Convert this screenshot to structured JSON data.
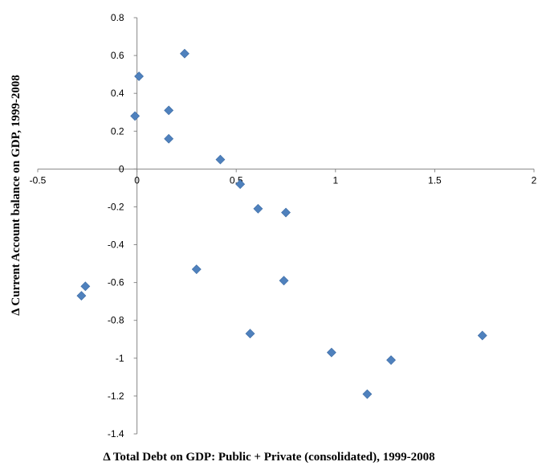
{
  "chart_data": {
    "type": "scatter",
    "title": "",
    "xlabel": "Δ Total Debt on GDP: Public + Private (consolidated), 1999-2008",
    "ylabel": "Δ Current Account balance on GDP, 1999-2008",
    "xlim": [
      -0.5,
      2
    ],
    "ylim": [
      -1.4,
      0.8
    ],
    "x_ticks": [
      "-0.5",
      "0",
      "0.5",
      "1",
      "1.5",
      "2"
    ],
    "y_ticks": [
      "0.8",
      "0.6",
      "0.4",
      "0.2",
      "0",
      "-0.2",
      "-0.4",
      "-0.6",
      "-0.8",
      "-1",
      "-1.2",
      "-1.4"
    ],
    "grid": false,
    "marker_color": "#4f81bd",
    "series": [
      {
        "points": [
          {
            "x": 0.01,
            "y": 0.49
          },
          {
            "x": 0.24,
            "y": 0.61
          },
          {
            "x": -0.01,
            "y": 0.28
          },
          {
            "x": 0.16,
            "y": 0.31
          },
          {
            "x": 0.16,
            "y": 0.16
          },
          {
            "x": 0.42,
            "y": 0.05
          },
          {
            "x": 0.52,
            "y": -0.08
          },
          {
            "x": 0.61,
            "y": -0.21
          },
          {
            "x": 0.75,
            "y": -0.23
          },
          {
            "x": 0.3,
            "y": -0.53
          },
          {
            "x": 0.74,
            "y": -0.59
          },
          {
            "x": -0.26,
            "y": -0.62
          },
          {
            "x": -0.28,
            "y": -0.67
          },
          {
            "x": 0.57,
            "y": -0.87
          },
          {
            "x": 0.98,
            "y": -0.97
          },
          {
            "x": 1.28,
            "y": -1.01
          },
          {
            "x": 1.16,
            "y": -1.19
          },
          {
            "x": 1.74,
            "y": -0.88
          }
        ]
      }
    ]
  }
}
